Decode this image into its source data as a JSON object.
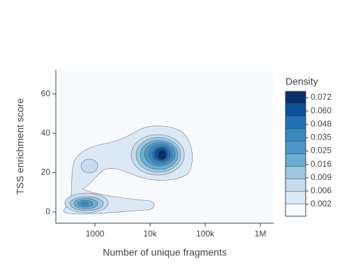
{
  "chart_data": {
    "type": "contour",
    "xlabel": "Number of unique fragments",
    "ylabel": "TSS enrichment score",
    "xscale": "log",
    "xlim": [
      195,
      1740000
    ],
    "xticks": [
      1000,
      {
        "value": 10000,
        "label": "10k"
      },
      {
        "value": 100000,
        "label": "100k"
      },
      {
        "value": 1000000,
        "label": "1M"
      }
    ],
    "ylim": [
      -5.7,
      72.3
    ],
    "yticks": [
      0,
      20,
      40,
      60
    ],
    "colorbar": {
      "title": "Density",
      "ticks": [
        0.002,
        0.006,
        0.009,
        0.016,
        0.025,
        0.035,
        0.048,
        {
          "value": 0.06,
          "label": "0.060"
        },
        0.072
      ],
      "colorscale": [
        "#f7fbff",
        "#dbe9f6",
        "#c6dbef",
        "#9ac8e0",
        "#6aaed6",
        "#4b97c9",
        "#3787c0",
        "#2171b5",
        "#08519c",
        "#08306b"
      ]
    }
  }
}
